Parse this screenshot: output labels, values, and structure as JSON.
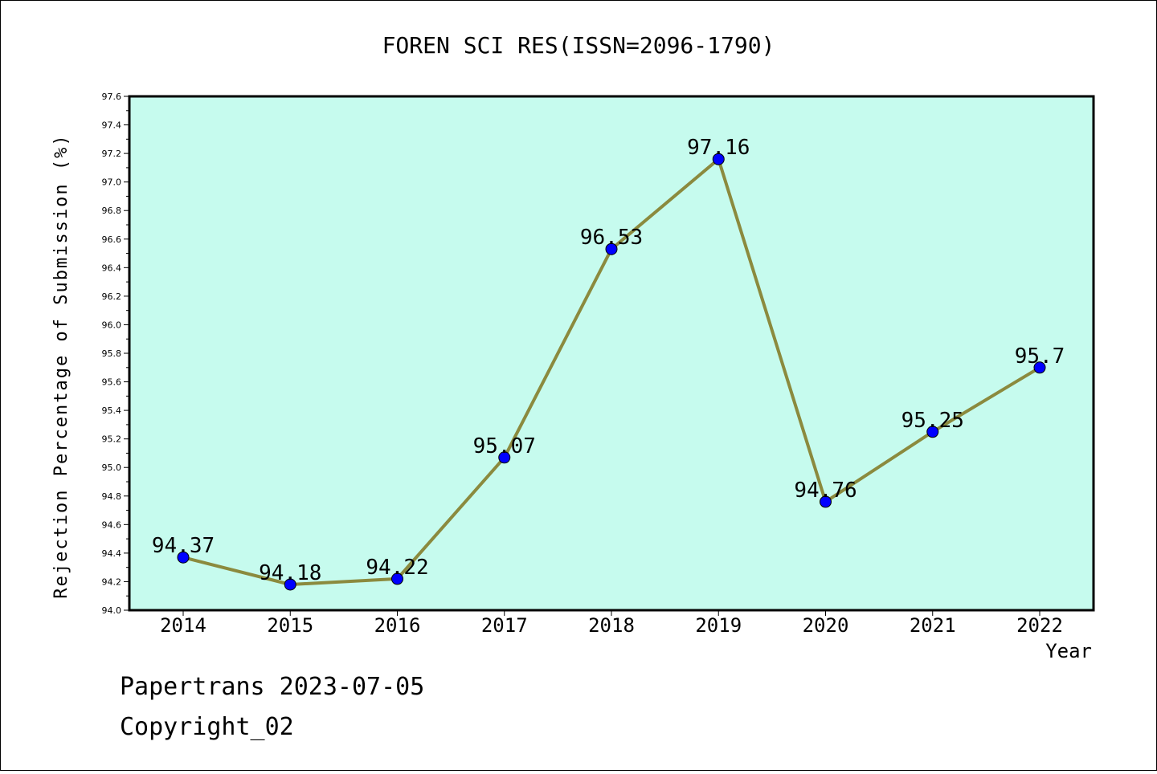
{
  "chart_data": {
    "type": "line",
    "title": "FOREN SCI RES(ISSN=2096-1790)",
    "xlabel": "Year",
    "ylabel": "Rejection Percentage of Submission (%)",
    "categories": [
      "2014",
      "2015",
      "2016",
      "2017",
      "2018",
      "2019",
      "2020",
      "2021",
      "2022"
    ],
    "series": [
      {
        "values": [
          94.37,
          94.18,
          94.22,
          95.07,
          96.53,
          97.16,
          94.76,
          95.25,
          95.7
        ],
        "labels": [
          "94.37",
          "94.18",
          "94.22",
          "95.07",
          "96.53",
          "97.16",
          "94.76",
          "95.25",
          "95.7"
        ]
      }
    ],
    "ylim": [
      94.0,
      97.6
    ],
    "yticks": [
      "94.0",
      "94.2",
      "94.4",
      "94.6",
      "94.8",
      "95.0",
      "95.2",
      "95.4",
      "95.6",
      "95.8",
      "96.0",
      "96.2",
      "96.4",
      "96.6",
      "96.8",
      "97.0",
      "97.2",
      "97.4",
      "97.6"
    ],
    "grid": false,
    "colors": {
      "plot_background": "#c6fbee",
      "line": "#8b8a3e",
      "marker": "#0000ff"
    }
  },
  "footer": {
    "line1": "Papertrans 2023-07-05",
    "line2": "Copyright_02"
  }
}
